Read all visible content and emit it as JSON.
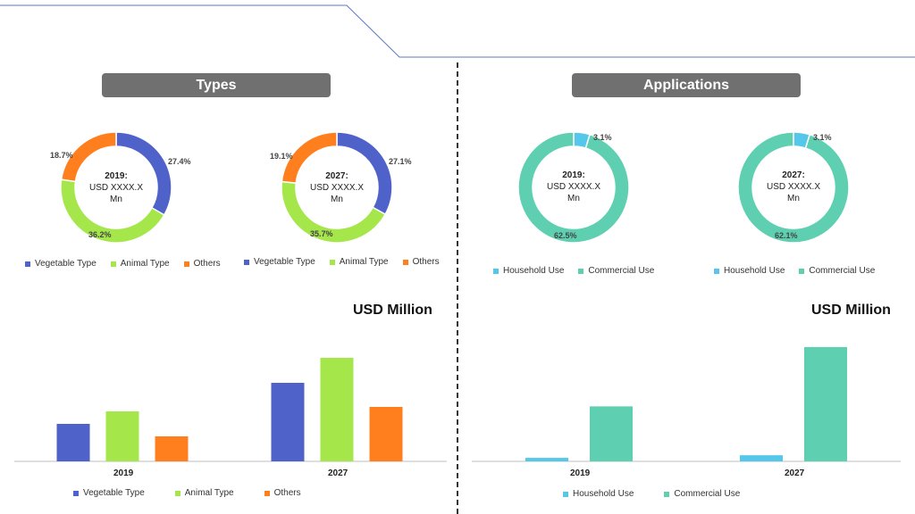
{
  "sections": {
    "types": {
      "title": "Types"
    },
    "applications": {
      "title": "Applications"
    }
  },
  "colors": {
    "vegetable": "#4F62C9",
    "animal": "#A5E64B",
    "others": "#FF7F1E",
    "household": "#55C7EB",
    "commercial": "#5ECFB1",
    "pill": "#707070"
  },
  "donuts": {
    "types_2019": {
      "year": "2019:",
      "value": "USD XXXX.X",
      "unit": "Mn",
      "labels": {
        "vegetable": "27.4%",
        "animal": "36.2%",
        "others": "18.7%"
      }
    },
    "types_2027": {
      "year": "2027:",
      "value": "USD XXXX.X",
      "unit": "Mn",
      "labels": {
        "vegetable": "27.1%",
        "animal": "35.7%",
        "others": "19.1%"
      }
    },
    "apps_2019": {
      "year": "2019:",
      "value": "USD XXXX.X",
      "unit": "Mn",
      "labels": {
        "household": "3.1%",
        "commercial": "62.5%"
      }
    },
    "apps_2027": {
      "year": "2027:",
      "value": "USD XXXX.X",
      "unit": "Mn",
      "labels": {
        "household": "3.1%",
        "commercial": "62.1%"
      }
    }
  },
  "legends": {
    "types": [
      "Vegetable Type",
      "Animal Type",
      "Others"
    ],
    "applications": [
      "Household Use",
      "Commercial Use"
    ]
  },
  "usd_label": "USD Million",
  "chart_data": [
    {
      "type": "pie",
      "title": "Types 2019",
      "categories": [
        "Vegetable Type",
        "Animal Type",
        "Others"
      ],
      "values": [
        27.4,
        36.2,
        18.7
      ]
    },
    {
      "type": "pie",
      "title": "Types 2027",
      "categories": [
        "Vegetable Type",
        "Animal Type",
        "Others"
      ],
      "values": [
        27.1,
        35.7,
        19.1
      ]
    },
    {
      "type": "pie",
      "title": "Applications 2019",
      "categories": [
        "Household Use",
        "Commercial Use"
      ],
      "values": [
        3.1,
        62.5
      ]
    },
    {
      "type": "pie",
      "title": "Applications 2027",
      "categories": [
        "Household Use",
        "Commercial Use"
      ],
      "values": [
        3.1,
        62.1
      ]
    },
    {
      "type": "bar",
      "title": "USD Million",
      "categories": [
        "2019",
        "2027"
      ],
      "series": [
        {
          "name": "Vegetable Type",
          "values": [
            42,
            88
          ]
        },
        {
          "name": "Animal Type",
          "values": [
            56,
            116
          ]
        },
        {
          "name": "Others",
          "values": [
            28,
            61
          ]
        }
      ],
      "ylim": [
        0,
        120
      ]
    },
    {
      "type": "bar",
      "title": "USD Million",
      "categories": [
        "2019",
        "2027"
      ],
      "series": [
        {
          "name": "Household Use",
          "values": [
            4,
            7
          ]
        },
        {
          "name": "Commercial Use",
          "values": [
            63,
            131
          ]
        }
      ],
      "ylim": [
        0,
        135
      ]
    }
  ]
}
